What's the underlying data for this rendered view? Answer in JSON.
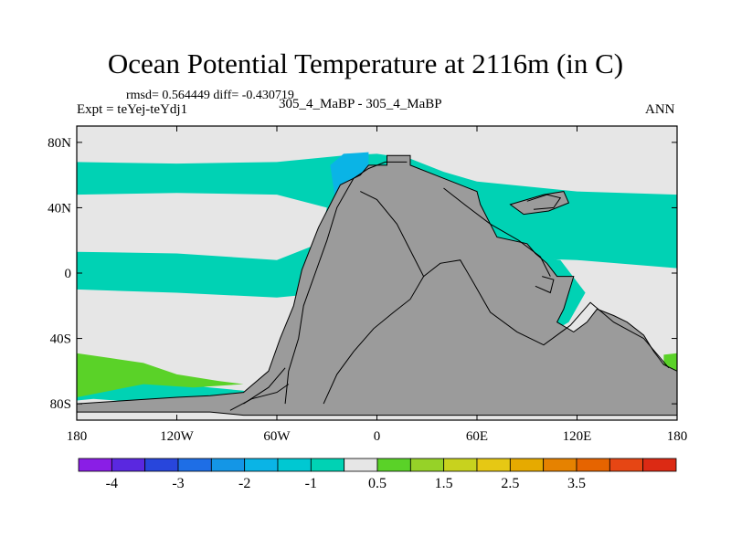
{
  "header": {
    "title": "Ocean Potential Temperature at 2116m (in C)",
    "stats": "rmsd= 0.564449 diff= -0.430719",
    "expt": "Expt = teYej-teYdj1",
    "cases": "305_4_MaBP - 305_4_MaBP",
    "season": "ANN"
  },
  "chart_data": {
    "type": "heatmap",
    "title": "Ocean Potential Temperature at 2116m (in C)",
    "xlabel": "",
    "ylabel": "",
    "xlim": [
      -180,
      180
    ],
    "ylim": [
      -90,
      90
    ],
    "x_ticks": [
      {
        "value": -180,
        "label": "180"
      },
      {
        "value": -120,
        "label": "120W"
      },
      {
        "value": -60,
        "label": "60W"
      },
      {
        "value": 0,
        "label": "0"
      },
      {
        "value": 60,
        "label": "60E"
      },
      {
        "value": 120,
        "label": "120E"
      },
      {
        "value": 180,
        "label": "180"
      }
    ],
    "y_ticks": [
      {
        "value": 80,
        "label": "80N"
      },
      {
        "value": 40,
        "label": "40N"
      },
      {
        "value": 0,
        "label": "0"
      },
      {
        "value": -40,
        "label": "40S"
      },
      {
        "value": -80,
        "label": "80S"
      }
    ],
    "colorbar": {
      "colors": [
        "#8a1ee6",
        "#5a28e0",
        "#2846dc",
        "#1e6ee6",
        "#1496e6",
        "#0ab4e6",
        "#00c8d2",
        "#00d2b4",
        "#e6e6e6",
        "#5ad228",
        "#96d228",
        "#c8d21e",
        "#e6c814",
        "#e6aa00",
        "#e68200",
        "#e66400",
        "#e64614",
        "#dc2a14"
      ],
      "labels": [
        {
          "after_index": 0,
          "text": "-4"
        },
        {
          "after_index": 2,
          "text": "-3"
        },
        {
          "after_index": 4,
          "text": "-2"
        },
        {
          "after_index": 6,
          "text": "-1"
        },
        {
          "after_index": 8,
          "text": "0.5"
        },
        {
          "after_index": 10,
          "text": "1.5"
        },
        {
          "after_index": 12,
          "text": "2.5"
        },
        {
          "after_index": 14,
          "text": "3.5"
        }
      ]
    },
    "regions": [
      {
        "name": "background-near-zero",
        "color": "#e6e6e6",
        "level": "-0.5 to 0.5",
        "polygons": [
          [
            [
              -180,
              90
            ],
            [
              180,
              90
            ],
            [
              180,
              -90
            ],
            [
              -180,
              -90
            ]
          ]
        ]
      },
      {
        "name": "north-cyan-band",
        "color": "#00d2b4",
        "level": "-1 to -0.5",
        "polygons": [
          [
            [
              -180,
              68
            ],
            [
              -120,
              67
            ],
            [
              -60,
              68
            ],
            [
              -20,
              72
            ],
            [
              0,
              73
            ],
            [
              20,
              70
            ],
            [
              40,
              62
            ],
            [
              60,
              56
            ],
            [
              120,
              50
            ],
            [
              180,
              48
            ],
            [
              180,
              3
            ],
            [
              120,
              8
            ],
            [
              60,
              10
            ],
            [
              40,
              -6
            ],
            [
              22,
              5
            ],
            [
              0,
              0
            ],
            [
              -30,
              -12
            ],
            [
              -60,
              -15
            ],
            [
              -120,
              -12
            ],
            [
              -180,
              -10
            ],
            [
              -180,
              13
            ],
            [
              -120,
              12
            ],
            [
              -60,
              8
            ],
            [
              -35,
              18
            ],
            [
              -30,
              40
            ],
            [
              -60,
              48
            ],
            [
              -120,
              49
            ],
            [
              -180,
              48
            ]
          ]
        ]
      },
      {
        "name": "north-deeper-cyan",
        "color": "#0ab4e6",
        "level": "-1.5 to -1",
        "polygons": [
          [
            [
              -28,
              66
            ],
            [
              -20,
              73
            ],
            [
              -5,
              74
            ],
            [
              -5,
              45
            ],
            [
              -15,
              40
            ],
            [
              -25,
              45
            ]
          ]
        ]
      },
      {
        "name": "pacific-cyan-tongue",
        "color": "#00d2b4",
        "level": "-1 to -0.5",
        "polygons": [
          [
            [
              25,
              18
            ],
            [
              45,
              25
            ],
            [
              70,
              20
            ],
            [
              85,
              12
            ],
            [
              110,
              8
            ],
            [
              125,
              -12
            ],
            [
              115,
              -30
            ],
            [
              95,
              -42
            ],
            [
              70,
              -42
            ],
            [
              45,
              -35
            ],
            [
              35,
              -12
            ],
            [
              20,
              -5
            ]
          ]
        ]
      },
      {
        "name": "south-cyan-band",
        "color": "#00d2b4",
        "level": "-1 to -0.5",
        "polygons": [
          [
            [
              -180,
              -65
            ],
            [
              -150,
              -66
            ],
            [
              -120,
              -68
            ],
            [
              -100,
              -70
            ],
            [
              -80,
              -72
            ],
            [
              -70,
              -78
            ],
            [
              -90,
              -80
            ],
            [
              -130,
              -80
            ],
            [
              -170,
              -77
            ],
            [
              -180,
              -78
            ]
          ]
        ]
      },
      {
        "name": "south-green-patch-west",
        "color": "#5ad228",
        "level": "0.5 to 1",
        "polygons": [
          [
            [
              -180,
              -49
            ],
            [
              -160,
              -52
            ],
            [
              -140,
              -55
            ],
            [
              -120,
              -62
            ],
            [
              -95,
              -66
            ],
            [
              -80,
              -68
            ],
            [
              -110,
              -70
            ],
            [
              -140,
              -68
            ],
            [
              -165,
              -73
            ],
            [
              -175,
              -75
            ],
            [
              -180,
              -76
            ]
          ]
        ]
      },
      {
        "name": "south-green-patch-east",
        "color": "#5ad228",
        "level": "0.5 to 1",
        "polygons": [
          [
            [
              172,
              -50
            ],
            [
              180,
              -49
            ],
            [
              180,
              -70
            ],
            [
              172,
              -66
            ]
          ]
        ]
      }
    ],
    "land": {
      "color": "#9b9b9b",
      "polygons": [
        [
          [
            -5,
            66
          ],
          [
            6,
            66
          ],
          [
            6,
            72
          ],
          [
            20,
            72
          ],
          [
            20,
            66
          ],
          [
            35,
            60
          ],
          [
            60,
            50
          ],
          [
            62,
            42
          ],
          [
            68,
            30
          ],
          [
            72,
            22
          ],
          [
            90,
            18
          ],
          [
            95,
            12
          ],
          [
            102,
            6
          ],
          [
            108,
            -2
          ],
          [
            118,
            -2
          ],
          [
            112,
            -22
          ],
          [
            108,
            -30
          ],
          [
            118,
            -36
          ],
          [
            126,
            -30
          ],
          [
            132,
            -22
          ],
          [
            142,
            -26
          ],
          [
            150,
            -30
          ],
          [
            160,
            -38
          ],
          [
            166,
            -48
          ],
          [
            172,
            -56
          ],
          [
            180,
            -60
          ],
          [
            180,
            -87
          ],
          [
            -80,
            -87
          ],
          [
            -100,
            -85
          ],
          [
            -130,
            -85
          ],
          [
            -160,
            -85
          ],
          [
            -180,
            -85
          ],
          [
            -180,
            -80
          ],
          [
            -150,
            -78
          ],
          [
            -120,
            -76
          ],
          [
            -100,
            -75
          ],
          [
            -80,
            -73
          ],
          [
            -65,
            -60
          ],
          [
            -58,
            -40
          ],
          [
            -50,
            -20
          ],
          [
            -45,
            2
          ],
          [
            -35,
            28
          ],
          [
            -28,
            42
          ],
          [
            -22,
            54
          ],
          [
            -10,
            60
          ]
        ],
        [
          [
            80,
            42
          ],
          [
            100,
            48
          ],
          [
            112,
            50
          ],
          [
            115,
            43
          ],
          [
            103,
            38
          ],
          [
            88,
            36
          ]
        ]
      ]
    },
    "contours": [
      [
        [
          -55,
          -80
        ],
        [
          -53,
          -60
        ],
        [
          -47,
          -40
        ],
        [
          -44,
          -20
        ],
        [
          -37,
          0
        ],
        [
          -30,
          20
        ],
        [
          -24,
          40
        ],
        [
          -14,
          58
        ],
        [
          -5,
          64
        ],
        [
          5,
          68
        ],
        [
          18,
          68
        ]
      ],
      [
        [
          -10,
          50
        ],
        [
          0,
          45
        ],
        [
          12,
          30
        ],
        [
          20,
          14
        ],
        [
          28,
          -2
        ],
        [
          20,
          -16
        ],
        [
          10,
          -24
        ],
        [
          -2,
          -34
        ],
        [
          -14,
          -48
        ],
        [
          -24,
          -62
        ],
        [
          -32,
          -80
        ]
      ],
      [
        [
          28,
          -2
        ],
        [
          38,
          6
        ],
        [
          50,
          8
        ],
        [
          58,
          -6
        ],
        [
          68,
          -24
        ],
        [
          84,
          -36
        ],
        [
          100,
          -44
        ],
        [
          116,
          -32
        ],
        [
          128,
          -18
        ],
        [
          142,
          -30
        ],
        [
          160,
          -40
        ],
        [
          175,
          -58
        ]
      ],
      [
        [
          40,
          52
        ],
        [
          55,
          40
        ],
        [
          68,
          30
        ],
        [
          85,
          20
        ],
        [
          98,
          10
        ],
        [
          104,
          -2
        ]
      ],
      [
        [
          -88,
          -84
        ],
        [
          -75,
          -77
        ],
        [
          -60,
          -73
        ],
        [
          -53,
          -68
        ]
      ],
      [
        [
          -80,
          -80
        ],
        [
          -65,
          -70
        ],
        [
          -55,
          -58
        ]
      ],
      [
        [
          95,
          -8
        ],
        [
          104,
          -12
        ],
        [
          106,
          -4
        ],
        [
          99,
          -2
        ]
      ],
      [
        [
          90,
          44
        ],
        [
          102,
          48
        ],
        [
          110,
          46
        ],
        [
          106,
          40
        ],
        [
          94,
          39
        ]
      ]
    ]
  }
}
